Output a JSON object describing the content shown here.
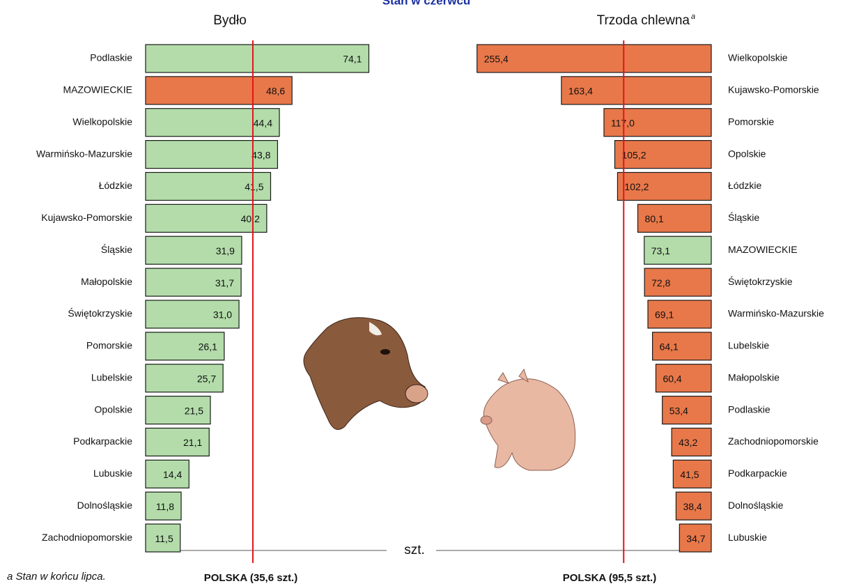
{
  "title": "Stan w czerwcu",
  "unit": "szt.",
  "footnote": "a Stan w końcu lipca.",
  "chart_data": [
    {
      "type": "bar",
      "orientation": "horizontal",
      "title": "Bydło",
      "categories": [
        "Podlaskie",
        "MAZOWIECKIE",
        "Wielkopolskie",
        "Warmińsko-Mazurskie",
        "Łódzkie",
        "Kujawsko-Pomorskie",
        "Śląskie",
        "Małopolskie",
        "Świętokrzyskie",
        "Pomorskie",
        "Lubelskie",
        "Opolskie",
        "Podkarpackie",
        "Lubuskie",
        "Dolnośląskie",
        "Zachodniopomorskie"
      ],
      "values": [
        74.1,
        48.6,
        44.4,
        43.8,
        41.5,
        40.2,
        31.9,
        31.7,
        31.0,
        26.1,
        25.7,
        21.5,
        21.1,
        14.4,
        11.8,
        11.5
      ],
      "value_labels": [
        "74,1",
        "48,6",
        "44,4",
        "43,8",
        "41,5",
        "40,2",
        "31,9",
        "31,7",
        "31,0",
        "26,1",
        "25,7",
        "21,5",
        "21,1",
        "14,4",
        "11,8",
        "11,5"
      ],
      "colors": [
        "#b3dcaa",
        "#e8784a",
        "#b3dcaa",
        "#b3dcaa",
        "#b3dcaa",
        "#b3dcaa",
        "#b3dcaa",
        "#b3dcaa",
        "#b3dcaa",
        "#b3dcaa",
        "#b3dcaa",
        "#b3dcaa",
        "#b3dcaa",
        "#b3dcaa",
        "#b3dcaa",
        "#b3dcaa"
      ],
      "xlim": [
        0,
        80
      ],
      "xreversed": false,
      "reference": {
        "value": 35.6,
        "label": "POLSKA (35,6 szt.)",
        "color": "#e3141b"
      }
    },
    {
      "type": "bar",
      "orientation": "horizontal",
      "title": "Trzoda chlewna",
      "title_marker": "a",
      "categories": [
        "Wielkopolskie",
        "Kujawsko-Pomorskie",
        "Pomorskie",
        "Opolskie",
        "Łódzkie",
        "Śląskie",
        "MAZOWIECKIE",
        "Świętokrzyskie",
        "Warmińsko-Mazurskie",
        "Lubelskie",
        "Małopolskie",
        "Podlaskie",
        "Zachodniopomorskie",
        "Podkarpackie",
        "Dolnośląskie",
        "Lubuskie"
      ],
      "values": [
        255.4,
        163.4,
        117.0,
        105.2,
        102.2,
        80.1,
        73.1,
        72.8,
        69.1,
        64.1,
        60.4,
        53.4,
        43.2,
        41.5,
        38.4,
        34.7
      ],
      "value_labels": [
        "255,4",
        "163,4",
        "117,0",
        "105,2",
        "102,2",
        "80,1",
        "73,1",
        "72,8",
        "69,1",
        "64,1",
        "60,4",
        "53,4",
        "43,2",
        "41,5",
        "38,4",
        "34,7"
      ],
      "colors": [
        "#e8784a",
        "#e8784a",
        "#e8784a",
        "#e8784a",
        "#e8784a",
        "#e8784a",
        "#b3dcaa",
        "#e8784a",
        "#e8784a",
        "#e8784a",
        "#e8784a",
        "#e8784a",
        "#e8784a",
        "#e8784a",
        "#e8784a",
        "#e8784a"
      ],
      "xlim": [
        0,
        300
      ],
      "xreversed": true,
      "reference": {
        "value": 95.5,
        "label": "POLSKA (95,5 szt.)",
        "color": "#e3141b"
      }
    }
  ]
}
